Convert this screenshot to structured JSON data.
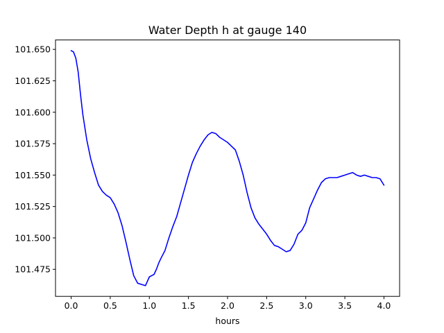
{
  "chart_data": {
    "type": "line",
    "title": "Water Depth h at gauge 140",
    "xlabel": "hours",
    "ylabel": "",
    "xlim": [
      -0.2,
      4.2
    ],
    "ylim": [
      101.4535,
      101.6575
    ],
    "xticks": [
      0.0,
      0.5,
      1.0,
      1.5,
      2.0,
      2.5,
      3.0,
      3.5,
      4.0
    ],
    "xtick_labels": [
      "0.0",
      "0.5",
      "1.0",
      "1.5",
      "2.0",
      "2.5",
      "3.0",
      "3.5",
      "4.0"
    ],
    "yticks": [
      101.475,
      101.5,
      101.525,
      101.55,
      101.575,
      101.6,
      101.625,
      101.65
    ],
    "ytick_labels": [
      "101.475",
      "101.500",
      "101.525",
      "101.550",
      "101.575",
      "101.600",
      "101.625",
      "101.650"
    ],
    "grid": false,
    "series": [
      {
        "color": "#0000ff",
        "x": [
          0.0,
          0.03,
          0.06,
          0.09,
          0.12,
          0.15,
          0.2,
          0.25,
          0.3,
          0.35,
          0.4,
          0.45,
          0.5,
          0.55,
          0.6,
          0.65,
          0.7,
          0.75,
          0.8,
          0.85,
          0.9,
          0.95,
          1.0,
          1.03,
          1.06,
          1.09,
          1.12,
          1.15,
          1.2,
          1.25,
          1.3,
          1.35,
          1.4,
          1.45,
          1.5,
          1.55,
          1.6,
          1.65,
          1.7,
          1.75,
          1.8,
          1.85,
          1.9,
          1.95,
          2.0,
          2.05,
          2.1,
          2.15,
          2.2,
          2.25,
          2.3,
          2.35,
          2.4,
          2.45,
          2.5,
          2.55,
          2.6,
          2.65,
          2.7,
          2.75,
          2.8,
          2.85,
          2.9,
          2.95,
          3.0,
          3.05,
          3.1,
          3.15,
          3.2,
          3.25,
          3.3,
          3.35,
          3.4,
          3.45,
          3.5,
          3.55,
          3.6,
          3.65,
          3.7,
          3.75,
          3.8,
          3.85,
          3.9,
          3.95,
          4.0
        ],
        "y": [
          101.649,
          101.648,
          101.643,
          101.632,
          101.614,
          101.598,
          101.578,
          101.563,
          101.552,
          101.542,
          101.537,
          101.534,
          101.532,
          101.527,
          101.52,
          101.51,
          101.497,
          101.483,
          101.47,
          101.464,
          101.463,
          101.462,
          101.469,
          101.47,
          101.471,
          101.475,
          101.48,
          101.484,
          101.49,
          101.5,
          101.509,
          101.517,
          101.528,
          101.539,
          101.55,
          101.56,
          101.567,
          101.573,
          101.578,
          101.582,
          101.584,
          101.583,
          101.58,
          101.578,
          101.576,
          101.573,
          101.57,
          101.561,
          101.55,
          101.536,
          101.524,
          101.516,
          101.511,
          101.507,
          101.503,
          101.498,
          101.494,
          101.493,
          101.491,
          101.489,
          101.49,
          101.495,
          101.503,
          101.506,
          101.512,
          101.524,
          101.531,
          101.538,
          101.544,
          101.547,
          101.548,
          101.548,
          101.548,
          101.549,
          101.55,
          101.551,
          101.552,
          101.55,
          101.549,
          101.55,
          101.549,
          101.548,
          101.548,
          101.547,
          101.542
        ]
      }
    ]
  }
}
